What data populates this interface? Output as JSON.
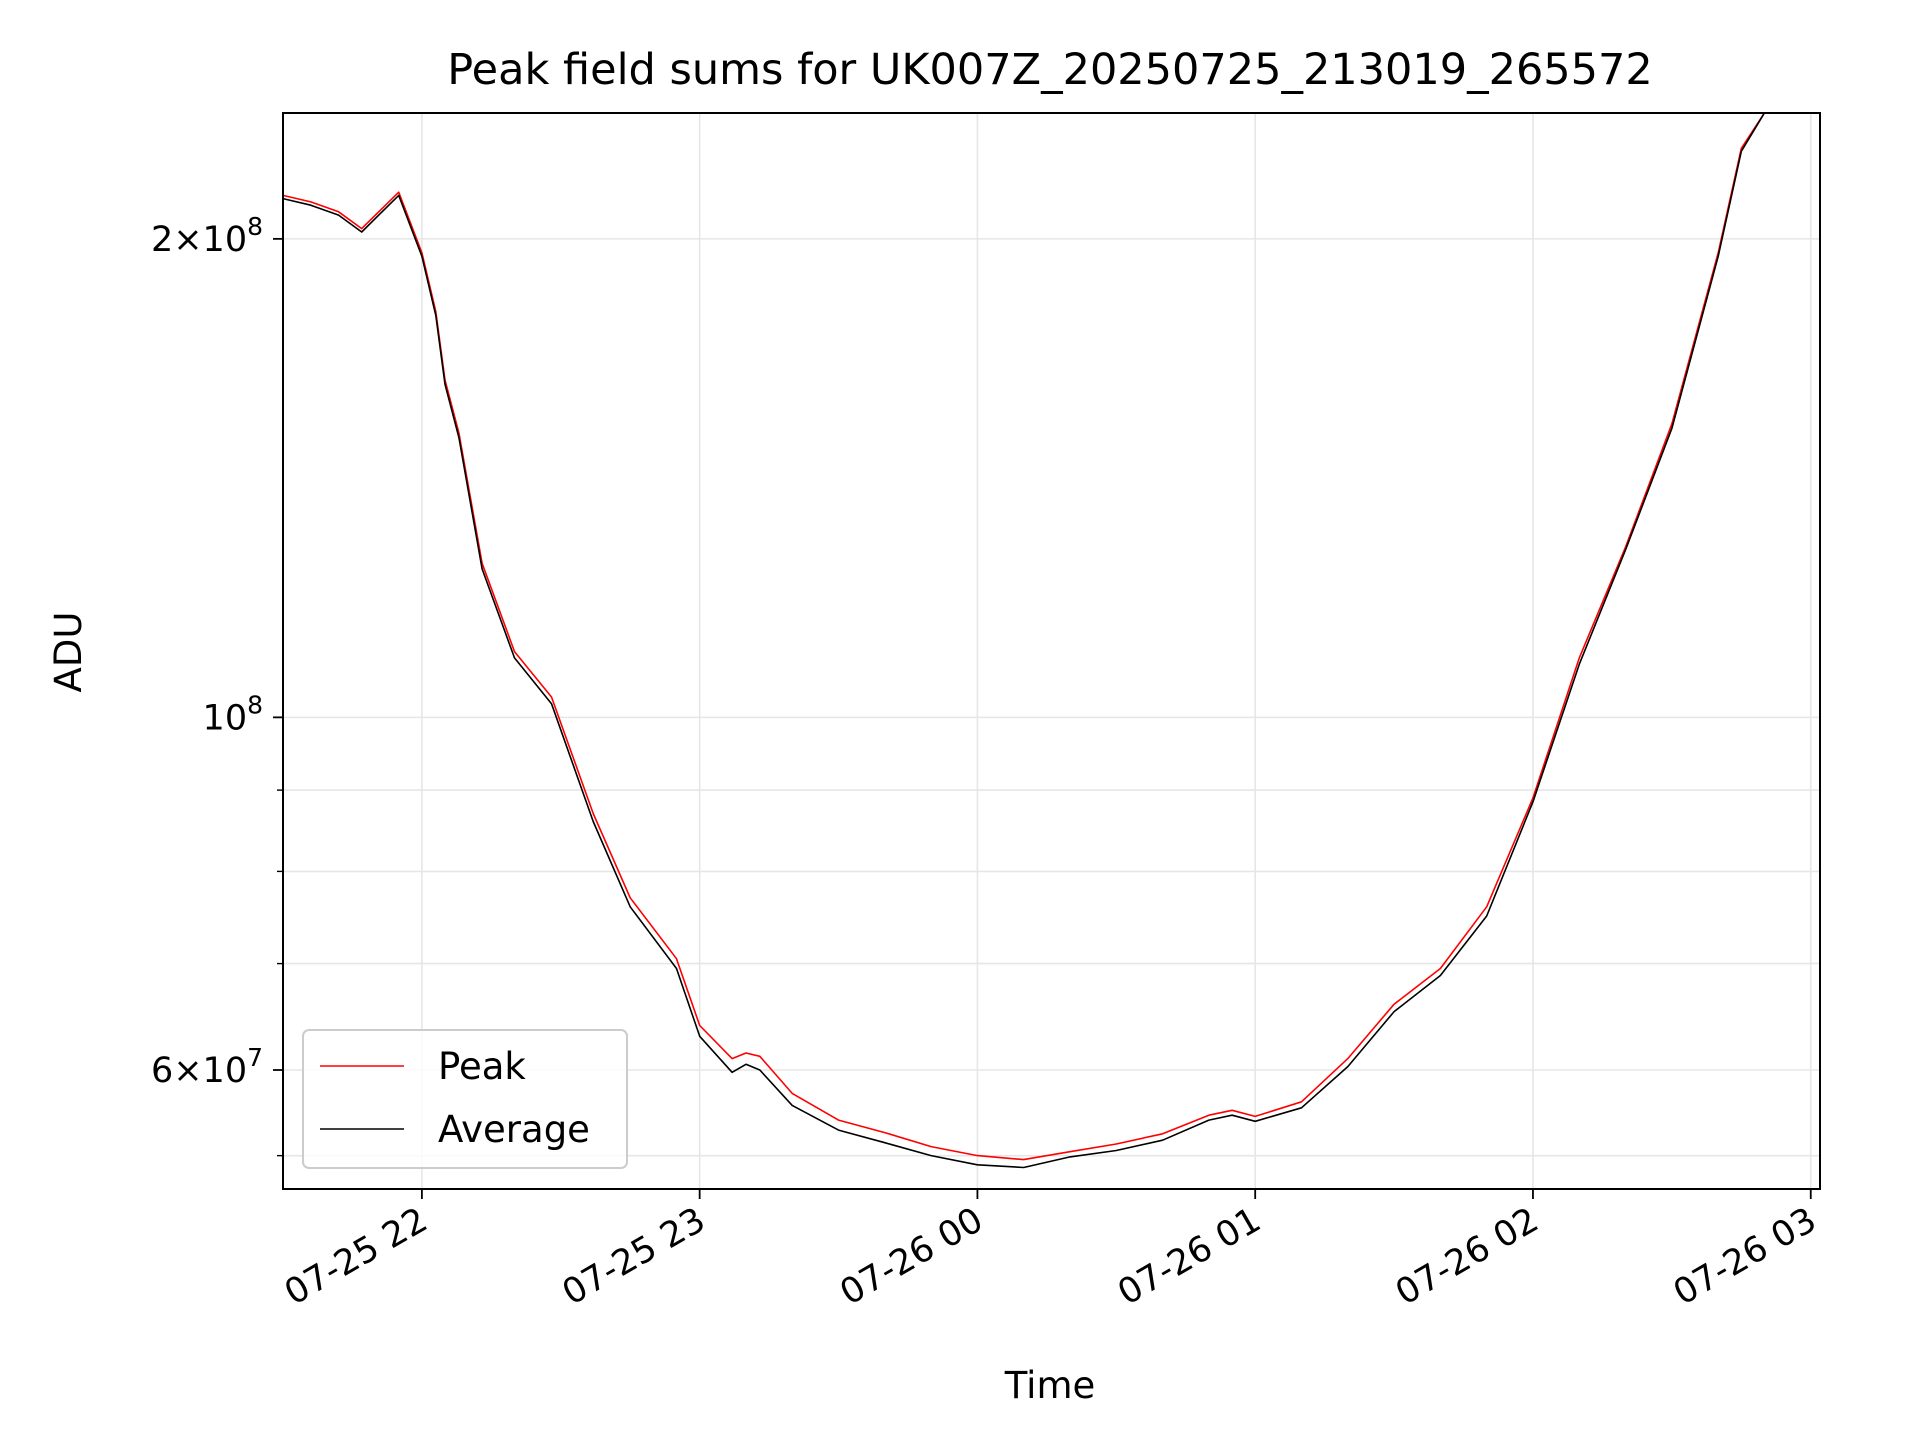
{
  "chart_data": {
    "type": "line",
    "title": "Peak field sums for UK007Z_20250725_213019_265572",
    "xlabel": "Time",
    "ylabel": "ADU",
    "yscale": "log",
    "grid": true,
    "legend_position": "lower-left",
    "xlim": [
      "2025-07-25 21:30",
      "2025-07-26 03:02"
    ],
    "ylim": [
      50500000,
      240000000
    ],
    "x_ticks": [
      {
        "x": "2025-07-25 22:00",
        "label": "07-25 22"
      },
      {
        "x": "2025-07-25 23:00",
        "label": "07-25 23"
      },
      {
        "x": "2025-07-26 00:00",
        "label": "07-26 00"
      },
      {
        "x": "2025-07-26 01:00",
        "label": "07-26 01"
      },
      {
        "x": "2025-07-26 02:00",
        "label": "07-26 02"
      },
      {
        "x": "2025-07-26 03:00",
        "label": "07-26 03"
      }
    ],
    "y_major_ticks": [
      {
        "value": 60000000,
        "base": "6×10",
        "exp": "7"
      },
      {
        "value": 100000000,
        "base": "10",
        "exp": "8"
      },
      {
        "value": 200000000,
        "base": "2×10",
        "exp": "8"
      }
    ],
    "y_minor_ticks": [
      53000000,
      70000000,
      80000000,
      90000000
    ],
    "series": [
      {
        "name": "Peak",
        "color": "#ff0000",
        "x": [
          "2025-07-25 21:30",
          "2025-07-25 21:36",
          "2025-07-25 21:42",
          "2025-07-25 21:47",
          "2025-07-25 21:55",
          "2025-07-25 22:00",
          "2025-07-25 22:03",
          "2025-07-25 22:05",
          "2025-07-25 22:08",
          "2025-07-25 22:13",
          "2025-07-25 22:20",
          "2025-07-25 22:28",
          "2025-07-25 22:37",
          "2025-07-25 22:45",
          "2025-07-25 22:55",
          "2025-07-25 23:00",
          "2025-07-25 23:07",
          "2025-07-25 23:10",
          "2025-07-25 23:13",
          "2025-07-25 23:20",
          "2025-07-25 23:30",
          "2025-07-25 23:40",
          "2025-07-25 23:50",
          "2025-07-26 00:00",
          "2025-07-26 00:10",
          "2025-07-26 00:20",
          "2025-07-26 00:30",
          "2025-07-26 00:40",
          "2025-07-26 00:50",
          "2025-07-26 00:55",
          "2025-07-26 01:00",
          "2025-07-26 01:10",
          "2025-07-26 01:20",
          "2025-07-26 01:30",
          "2025-07-26 01:40",
          "2025-07-26 01:50",
          "2025-07-26 02:00",
          "2025-07-26 02:10",
          "2025-07-26 02:20",
          "2025-07-26 02:30",
          "2025-07-26 02:40",
          "2025-07-26 02:45",
          "2025-07-26 02:50",
          "2025-07-26 03:02"
        ],
        "values": [
          213000000,
          211000000,
          208000000,
          203000000,
          214000000,
          196000000,
          180000000,
          163000000,
          151000000,
          125000000,
          110000000,
          103000000,
          87000000,
          77000000,
          70500000,
          64000000,
          61000000,
          61500000,
          61200000,
          58000000,
          55800000,
          54800000,
          53700000,
          53000000,
          52700000,
          53300000,
          53900000,
          54700000,
          56200000,
          56600000,
          56100000,
          57300000,
          61000000,
          66000000,
          69500000,
          76000000,
          89000000,
          109000000,
          128000000,
          153000000,
          196000000,
          228000000,
          240000000,
          240000000
        ]
      },
      {
        "name": "Average",
        "color": "#000000",
        "x": [
          "2025-07-25 21:30",
          "2025-07-25 21:36",
          "2025-07-25 21:42",
          "2025-07-25 21:47",
          "2025-07-25 21:55",
          "2025-07-25 22:00",
          "2025-07-25 22:03",
          "2025-07-25 22:05",
          "2025-07-25 22:08",
          "2025-07-25 22:13",
          "2025-07-25 22:20",
          "2025-07-25 22:28",
          "2025-07-25 22:37",
          "2025-07-25 22:45",
          "2025-07-25 22:55",
          "2025-07-25 23:00",
          "2025-07-25 23:07",
          "2025-07-25 23:10",
          "2025-07-25 23:13",
          "2025-07-25 23:20",
          "2025-07-25 23:30",
          "2025-07-25 23:40",
          "2025-07-25 23:50",
          "2025-07-26 00:00",
          "2025-07-26 00:10",
          "2025-07-26 00:20",
          "2025-07-26 00:30",
          "2025-07-26 00:40",
          "2025-07-26 00:50",
          "2025-07-26 00:55",
          "2025-07-26 01:00",
          "2025-07-26 01:10",
          "2025-07-26 01:20",
          "2025-07-26 01:30",
          "2025-07-26 01:40",
          "2025-07-26 01:50",
          "2025-07-26 02:00",
          "2025-07-26 02:10",
          "2025-07-26 02:20",
          "2025-07-26 02:30",
          "2025-07-26 02:40",
          "2025-07-26 02:45",
          "2025-07-26 02:50",
          "2025-07-26 03:02"
        ],
        "values": [
          212000000,
          210000000,
          207000000,
          202000000,
          213000000,
          195000000,
          179000000,
          162000000,
          150000000,
          124000000,
          109000000,
          102000000,
          86000000,
          76000000,
          69500000,
          63000000,
          59800000,
          60500000,
          60000000,
          57000000,
          55000000,
          54000000,
          53000000,
          52300000,
          52100000,
          52900000,
          53400000,
          54200000,
          55800000,
          56200000,
          55700000,
          56800000,
          60300000,
          65300000,
          68800000,
          75000000,
          88500000,
          108000000,
          127500000,
          152000000,
          195000000,
          227000000,
          240000000,
          240000000
        ]
      }
    ]
  }
}
